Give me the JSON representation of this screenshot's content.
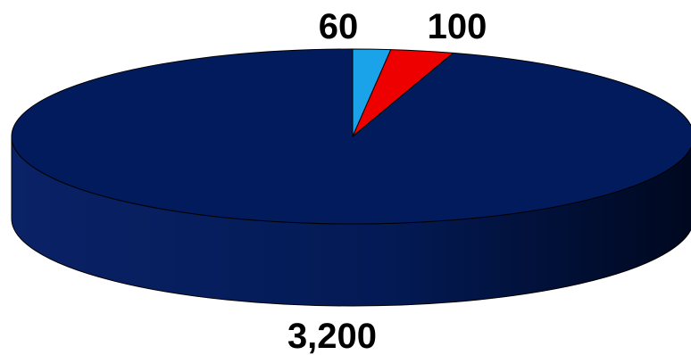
{
  "chart_data": {
    "type": "pie",
    "style": "3d",
    "start_angle_deg": 90,
    "direction": "clockwise",
    "slices": [
      {
        "label": "60",
        "value": 60,
        "color": "#1aa3e8"
      },
      {
        "label": "100",
        "value": 100,
        "color": "#ee0000"
      },
      {
        "label": "3,200",
        "value": 3200,
        "color": "#021b5c"
      }
    ],
    "side_color": "#021b5c",
    "title": "",
    "legend": "none"
  }
}
